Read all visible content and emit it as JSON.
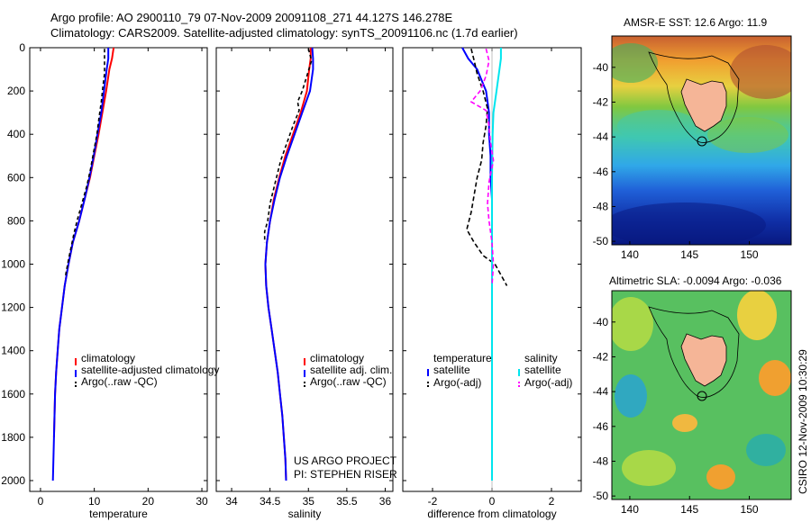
{
  "header": {
    "line1": "Argo profile: AO 2900110_79 07-Nov-2009 20091108_271 44.127S 146.278E",
    "line2": "Climatology: CARS2009. Satellite-adjusted climatology: synTS_20091106.nc (1.7d earlier)"
  },
  "credit": "CSIRO 12-Nov-2009 10:30:29",
  "project": {
    "line1": "US ARGO PROJECT",
    "line2": "PI: STEPHEN RISER"
  },
  "colors": {
    "climatology": "#ff0000",
    "satellite": "#0000ff",
    "argo": "#000000",
    "cyan": "#00e5ee",
    "magenta": "#ff00ff",
    "land": "#f5b597"
  },
  "chart_data": [
    {
      "type": "line",
      "id": "temperature",
      "xlabel": "temperature",
      "ylabel": "",
      "xlim": [
        -2,
        31
      ],
      "ylim": [
        2050,
        0
      ],
      "xticks": [
        "0",
        "10",
        "20",
        "30"
      ],
      "yticks": [
        "0",
        "200",
        "400",
        "600",
        "800",
        "1000",
        "1200",
        "1400",
        "1600",
        "1800",
        "2000"
      ],
      "legend": [
        "climatology",
        "satellite-adjusted climatology",
        "Argo(..raw -QC)"
      ],
      "series": [
        {
          "name": "climatology",
          "color": "#ff0000",
          "dash": "",
          "points": [
            [
              13.6,
              0
            ],
            [
              13.3,
              50
            ],
            [
              12.8,
              100
            ],
            [
              12.2,
              200
            ],
            [
              11.5,
              300
            ],
            [
              10.8,
              400
            ],
            [
              10.0,
              500
            ],
            [
              9.2,
              600
            ],
            [
              8.2,
              700
            ],
            [
              7.2,
              800
            ],
            [
              6.0,
              900
            ],
            [
              5.2,
              1000
            ],
            [
              4.5,
              1100
            ],
            [
              4.0,
              1200
            ],
            [
              3.5,
              1300
            ],
            [
              3.2,
              1400
            ],
            [
              2.9,
              1500
            ],
            [
              2.7,
              1600
            ],
            [
              2.6,
              1700
            ],
            [
              2.5,
              1800
            ]
          ]
        },
        {
          "name": "satellite-adjusted climatology",
          "color": "#0000ff",
          "dash": "",
          "points": [
            [
              12.6,
              0
            ],
            [
              12.6,
              50
            ],
            [
              12.3,
              100
            ],
            [
              11.8,
              200
            ],
            [
              11.3,
              300
            ],
            [
              10.6,
              400
            ],
            [
              9.9,
              500
            ],
            [
              9.1,
              600
            ],
            [
              8.2,
              700
            ],
            [
              7.2,
              800
            ],
            [
              6.0,
              900
            ],
            [
              5.2,
              1000
            ],
            [
              4.5,
              1100
            ],
            [
              4.0,
              1200
            ],
            [
              3.5,
              1300
            ],
            [
              3.2,
              1400
            ],
            [
              2.9,
              1500
            ],
            [
              2.7,
              1600
            ],
            [
              2.6,
              1700
            ],
            [
              2.5,
              1800
            ],
            [
              2.4,
              1900
            ],
            [
              2.3,
              2000
            ]
          ]
        },
        {
          "name": "Argo(..raw -QC)",
          "color": "#000000",
          "dash": "4,3",
          "points": [
            [
              11.9,
              5
            ],
            [
              11.9,
              60
            ],
            [
              11.9,
              120
            ],
            [
              11.6,
              180
            ],
            [
              11.3,
              250
            ],
            [
              10.9,
              320
            ],
            [
              10.5,
              400
            ],
            [
              9.9,
              480
            ],
            [
              9.3,
              560
            ],
            [
              8.6,
              640
            ],
            [
              7.7,
              720
            ],
            [
              6.8,
              800
            ],
            [
              6.2,
              860
            ],
            [
              5.7,
              920
            ],
            [
              5.2,
              980
            ],
            [
              4.6,
              1060
            ]
          ]
        }
      ]
    },
    {
      "type": "line",
      "id": "salinity",
      "xlabel": "salinity",
      "ylabel": "",
      "xlim": [
        33.8,
        36.1
      ],
      "ylim": [
        2050,
        0
      ],
      "xticks": [
        "34",
        "34.5",
        "35",
        "35.5",
        "36"
      ],
      "legend": [
        "climatology",
        "satellite adj. clim.",
        "Argo(..raw -QC)"
      ],
      "series": [
        {
          "name": "climatology",
          "color": "#ff0000",
          "dash": "",
          "points": [
            [
              35.03,
              0
            ],
            [
              35.03,
              50
            ],
            [
              35.01,
              100
            ],
            [
              34.98,
              200
            ],
            [
              34.9,
              300
            ],
            [
              34.8,
              400
            ],
            [
              34.7,
              500
            ],
            [
              34.62,
              600
            ],
            [
              34.55,
              700
            ],
            [
              34.5,
              800
            ],
            [
              34.46,
              900
            ],
            [
              34.44,
              1000
            ],
            [
              34.45,
              1100
            ],
            [
              34.48,
              1200
            ],
            [
              34.52,
              1300
            ],
            [
              34.56,
              1400
            ],
            [
              34.6,
              1500
            ],
            [
              34.63,
              1600
            ],
            [
              34.66,
              1700
            ],
            [
              34.68,
              1800
            ],
            [
              34.7,
              1900
            ],
            [
              34.71,
              2000
            ]
          ]
        },
        {
          "name": "satellite adj. clim.",
          "color": "#0000ff",
          "dash": "",
          "points": [
            [
              35.05,
              0
            ],
            [
              35.06,
              50
            ],
            [
              35.06,
              100
            ],
            [
              35.02,
              200
            ],
            [
              34.92,
              300
            ],
            [
              34.82,
              400
            ],
            [
              34.72,
              500
            ],
            [
              34.63,
              600
            ],
            [
              34.56,
              700
            ],
            [
              34.5,
              800
            ],
            [
              34.46,
              900
            ],
            [
              34.44,
              1000
            ],
            [
              34.45,
              1100
            ],
            [
              34.48,
              1200
            ],
            [
              34.52,
              1300
            ],
            [
              34.56,
              1400
            ],
            [
              34.6,
              1500
            ],
            [
              34.63,
              1600
            ],
            [
              34.66,
              1700
            ],
            [
              34.68,
              1800
            ],
            [
              34.7,
              1900
            ],
            [
              34.71,
              2000
            ]
          ]
        },
        {
          "name": "Argo(..raw -QC)",
          "color": "#000000",
          "dash": "4,3",
          "points": [
            [
              35.0,
              5
            ],
            [
              35.04,
              60
            ],
            [
              34.98,
              130
            ],
            [
              34.92,
              200
            ],
            [
              34.86,
              250
            ],
            [
              34.88,
              290
            ],
            [
              34.8,
              360
            ],
            [
              34.72,
              440
            ],
            [
              34.64,
              520
            ],
            [
              34.57,
              620
            ],
            [
              34.5,
              720
            ],
            [
              34.47,
              800
            ],
            [
              34.43,
              850
            ],
            [
              34.43,
              900
            ]
          ]
        }
      ]
    },
    {
      "type": "line",
      "id": "difference",
      "xlabel": "difference from climatology",
      "ylabel": "",
      "xlim": [
        -3,
        3
      ],
      "ylim": [
        2050,
        0
      ],
      "xticks": [
        "-2",
        "0",
        "2"
      ],
      "legend": [
        "temperature",
        "satellite",
        "Argo(-adj)",
        "salinity",
        "satellite",
        "Argo(-adj)"
      ],
      "series": [
        {
          "name": "temperature satellite",
          "color": "#0000ff",
          "dash": "",
          "points": [
            [
              -1.0,
              0
            ],
            [
              -0.8,
              50
            ],
            [
              -0.5,
              100
            ],
            [
              -0.2,
              200
            ],
            [
              -0.1,
              300
            ],
            [
              -0.1,
              400
            ],
            [
              -0.05,
              500
            ],
            [
              -0.05,
              600
            ],
            [
              0.0,
              700
            ],
            [
              0.0,
              800
            ],
            [
              0.0,
              1000
            ],
            [
              0.0,
              1200
            ],
            [
              0.0,
              2000
            ]
          ]
        },
        {
          "name": "temperature Argo(-adj)",
          "color": "#000000",
          "dash": "5,3",
          "points": [
            [
              -0.7,
              5
            ],
            [
              -0.6,
              60
            ],
            [
              -0.5,
              120
            ],
            [
              -0.3,
              200
            ],
            [
              -0.15,
              280
            ],
            [
              -0.2,
              360
            ],
            [
              -0.3,
              440
            ],
            [
              -0.35,
              520
            ],
            [
              -0.5,
              600
            ],
            [
              -0.6,
              680
            ],
            [
              -0.7,
              760
            ],
            [
              -0.85,
              840
            ],
            [
              -0.6,
              900
            ],
            [
              -0.3,
              960
            ],
            [
              0.1,
              1000
            ],
            [
              0.3,
              1050
            ],
            [
              0.5,
              1100
            ]
          ]
        },
        {
          "name": "salinity satellite",
          "color": "#00e5ee",
          "dash": "",
          "points": [
            [
              0.3,
              0
            ],
            [
              0.3,
              50
            ],
            [
              0.25,
              100
            ],
            [
              0.15,
              200
            ],
            [
              0.05,
              300
            ],
            [
              0.02,
              400
            ],
            [
              0.0,
              600
            ],
            [
              0.0,
              800
            ],
            [
              0.0,
              1000
            ],
            [
              0.0,
              1500
            ],
            [
              0.0,
              2000
            ]
          ]
        },
        {
          "name": "salinity Argo(-adj)",
          "color": "#ff00ff",
          "dash": "5,3",
          "points": [
            [
              -0.2,
              5
            ],
            [
              -0.1,
              60
            ],
            [
              -0.2,
              130
            ],
            [
              -0.4,
              200
            ],
            [
              -0.7,
              250
            ],
            [
              -0.2,
              290
            ],
            [
              -0.1,
              360
            ],
            [
              -0.05,
              440
            ],
            [
              0.05,
              520
            ],
            [
              -0.1,
              620
            ],
            [
              -0.15,
              720
            ],
            [
              -0.1,
              800
            ],
            [
              0.0,
              900
            ],
            [
              0.05,
              1000
            ],
            [
              0.0,
              1100
            ]
          ]
        }
      ]
    },
    {
      "type": "heatmap",
      "id": "sst-map",
      "title": "AMSR-E SST: 12.6 Argo: 11.9",
      "xticks": [
        "140",
        "145",
        "150"
      ],
      "yticks": [
        "-40",
        "-42",
        "-44",
        "-46",
        "-48",
        "-50"
      ],
      "xlim": [
        138.5,
        153.5
      ],
      "ylim": [
        -50.2,
        -38.2
      ],
      "argo_position": [
        146.278,
        -44.127
      ]
    },
    {
      "type": "heatmap",
      "id": "sla-map",
      "title": "Altimetric SLA: -0.0094 Argo: -0.036",
      "xticks": [
        "140",
        "145",
        "150"
      ],
      "yticks": [
        "-40",
        "-42",
        "-44",
        "-46",
        "-48",
        "-50"
      ],
      "xlim": [
        138.5,
        153.5
      ],
      "ylim": [
        -50.2,
        -38.2
      ],
      "argo_position": [
        146.278,
        -44.127
      ]
    }
  ]
}
